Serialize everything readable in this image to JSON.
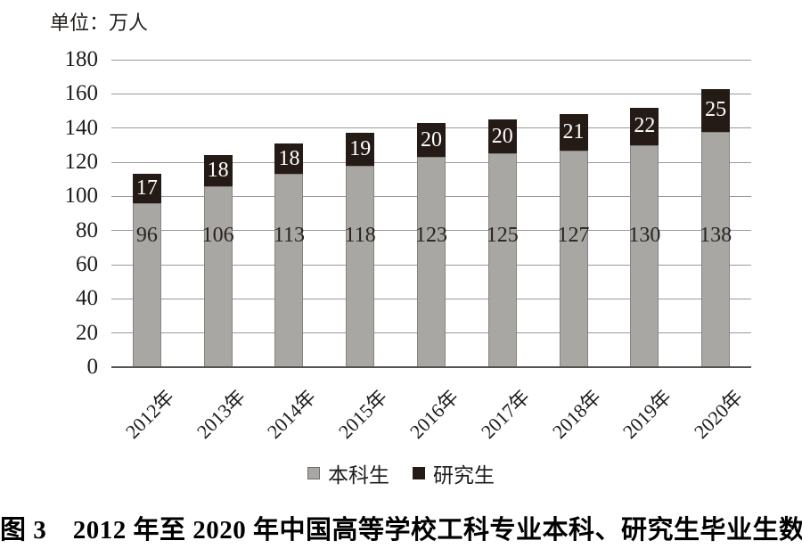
{
  "chart_data": {
    "type": "bar",
    "stacked": true,
    "unit_label": "单位：万人",
    "categories": [
      "2012年",
      "2013年",
      "2014年",
      "2015年",
      "2016年",
      "2017年",
      "2018年",
      "2019年",
      "2020年"
    ],
    "series": [
      {
        "name": "本科生",
        "color": "#a9a7a4",
        "label_color": "#262321",
        "values": [
          96,
          106,
          113,
          118,
          123,
          125,
          127,
          130,
          138
        ]
      },
      {
        "name": "研究生",
        "color": "#251b16",
        "label_color": "#ffffff",
        "values": [
          17,
          18,
          18,
          19,
          20,
          20,
          21,
          22,
          25
        ]
      }
    ],
    "ylim": [
      0,
      180
    ],
    "ytick_step": 20,
    "yticks": [
      0,
      20,
      40,
      60,
      80,
      100,
      120,
      140,
      160,
      180
    ],
    "grid": true,
    "legend_position": "bottom",
    "colors": {
      "gridline": "#9c9a98",
      "axis": "#56524e",
      "text": "#1c1c1c"
    }
  },
  "caption": "图 3　2012 年至 2020 年中国高等学校工科专业本科、研究生毕业生数"
}
